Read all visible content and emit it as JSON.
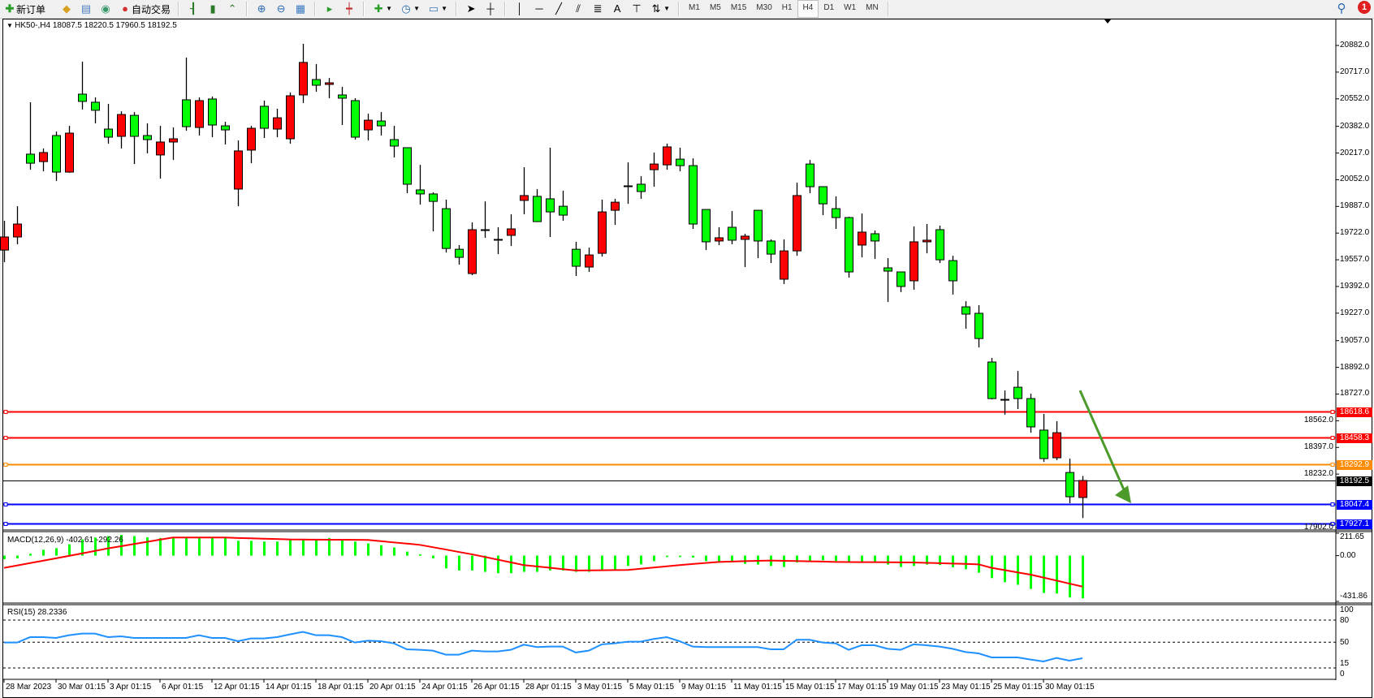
{
  "toolbar": {
    "new_order_label": "新订单",
    "auto_trading_label": "自动交易",
    "icons": [
      "new-order-icon",
      "gold-icon",
      "server-icon",
      "signal-icon",
      "auto-trading-icon",
      "bar-chart-icon",
      "candlestick-icon",
      "line-chart-icon",
      "zoom-in-icon",
      "zoom-out-icon",
      "tile-windows-icon",
      "autoscroll-icon",
      "chart-shift-icon",
      "indicators-icon",
      "periods-icon",
      "templates-icon",
      "cursor-icon",
      "crosshair-icon",
      "vertical-line-icon",
      "horizontal-line-icon",
      "trendline-icon",
      "equidistant-channel-icon",
      "fibonacci-icon",
      "text-icon",
      "text-label-icon",
      "arrows-icon"
    ],
    "text_tool_label": "A",
    "timeframes": [
      "M1",
      "M5",
      "M15",
      "M30",
      "H1",
      "H4",
      "D1",
      "W1",
      "MN"
    ],
    "active_timeframe": "H4",
    "notification_count": "1"
  },
  "chart": {
    "header": "HK50-,H4  18087.5 18220.5 17960.5 18192.5",
    "symbol": "HK50-",
    "timeframe": "H4",
    "colors": {
      "up": "#ff0000",
      "down": "#00ff00",
      "outline": "#000000",
      "arrow": "#4c9a2a"
    },
    "price_ticks": [
      "20882.0",
      "20717.0",
      "20552.0",
      "20382.0",
      "20217.0",
      "20052.0",
      "19887.0",
      "19722.0",
      "19557.0",
      "19392.0",
      "19227.0",
      "19057.0",
      "18892.0",
      "18727.0",
      "18562.0",
      "18397.0",
      "18232.0",
      "17902.0"
    ],
    "levels": [
      {
        "price": "18618.6",
        "color": "#ff0000"
      },
      {
        "price": "18458.3",
        "color": "#ff0000"
      },
      {
        "price": "18292.9",
        "color": "#ff8c00"
      },
      {
        "price": "18192.5",
        "color": "#000000"
      },
      {
        "price": "18047.4",
        "color": "#0000ff"
      },
      {
        "price": "17927.1",
        "color": "#0000ff"
      }
    ],
    "arrow": {
      "direction": "down-right",
      "from_price": 18749,
      "to_price": 18242
    },
    "time_labels": [
      "28 Mar 2023",
      "30 Mar 01:15",
      "3 Apr 01:15",
      "6 Apr 01:15",
      "12 Apr 01:15",
      "14 Apr 01:15",
      "18 Apr 01:15",
      "20 Apr 01:15",
      "24 Apr 01:15",
      "26 Apr 01:15",
      "28 Apr 01:15",
      "3 May 01:15",
      "5 May 01:15",
      "9 May 01:15",
      "11 May 01:15",
      "15 May 01:15",
      "17 May 01:15",
      "19 May 01:15",
      "23 May 01:15",
      "25 May 01:15",
      "30 May 01:15"
    ]
  },
  "chart_data": [
    {
      "type": "candlestick",
      "title": "HK50-,H4",
      "ylim": [
        17886,
        21048
      ],
      "ohlc": [
        [
          19617,
          19798,
          19542,
          19698
        ],
        [
          19698,
          19888,
          19653,
          19778
        ],
        [
          20210,
          20531,
          20114,
          20154
        ],
        [
          20164,
          20245,
          20104,
          20220
        ],
        [
          20325,
          20350,
          20044,
          20099
        ],
        [
          20099,
          20385,
          20095,
          20340
        ],
        [
          20581,
          20782,
          20486,
          20536
        ],
        [
          20531,
          20561,
          20400,
          20481
        ],
        [
          20365,
          20521,
          20275,
          20315
        ],
        [
          20320,
          20475,
          20245,
          20455
        ],
        [
          20450,
          20470,
          20149,
          20320
        ],
        [
          20325,
          20400,
          20215,
          20300
        ],
        [
          20205,
          20385,
          20059,
          20285
        ],
        [
          20285,
          20375,
          20174,
          20305
        ],
        [
          20546,
          20807,
          20355,
          20380
        ],
        [
          20375,
          20561,
          20325,
          20541
        ],
        [
          20551,
          20566,
          20315,
          20390
        ],
        [
          20385,
          20410,
          20270,
          20360
        ],
        [
          19994,
          20295,
          19888,
          20230
        ],
        [
          20235,
          20385,
          20154,
          20370
        ],
        [
          20506,
          20541,
          20310,
          20370
        ],
        [
          20365,
          20491,
          20315,
          20435
        ],
        [
          20305,
          20591,
          20275,
          20571
        ],
        [
          20576,
          20892,
          20526,
          20777
        ],
        [
          20671,
          20767,
          20596,
          20636
        ],
        [
          20641,
          20681,
          20556,
          20651
        ],
        [
          20576,
          20626,
          20390,
          20556
        ],
        [
          20541,
          20556,
          20300,
          20315
        ],
        [
          20360,
          20460,
          20295,
          20420
        ],
        [
          20415,
          20470,
          20325,
          20385
        ],
        [
          20300,
          20385,
          20190,
          20260
        ],
        [
          20250,
          20250,
          19969,
          20024
        ],
        [
          19989,
          20144,
          19898,
          19964
        ],
        [
          19964,
          19974,
          19733,
          19918
        ],
        [
          19873,
          19929,
          19602,
          19627
        ],
        [
          19622,
          19648,
          19527,
          19572
        ],
        [
          19472,
          19788,
          19462,
          19743
        ],
        [
          19743,
          19918,
          19693,
          19743
        ],
        [
          19683,
          19758,
          19592,
          19683
        ],
        [
          19708,
          19838,
          19642,
          19748
        ],
        [
          19924,
          20129,
          19838,
          19954
        ],
        [
          19949,
          19994,
          19790,
          19793
        ],
        [
          19934,
          20250,
          19698,
          19853
        ],
        [
          19888,
          19984,
          19798,
          19833
        ],
        [
          19622,
          19668,
          19457,
          19517
        ],
        [
          19512,
          19632,
          19482,
          19587
        ],
        [
          19597,
          19929,
          19577,
          19853
        ],
        [
          19863,
          19934,
          19773,
          19913
        ],
        [
          20014,
          20159,
          19903,
          20014
        ],
        [
          20024,
          20074,
          19934,
          19979
        ],
        [
          20114,
          20220,
          20009,
          20149
        ],
        [
          20144,
          20275,
          20114,
          20255
        ],
        [
          20179,
          20250,
          20104,
          20139
        ],
        [
          20139,
          20184,
          19748,
          19778
        ],
        [
          19868,
          19868,
          19617,
          19668
        ],
        [
          19673,
          19758,
          19648,
          19693
        ],
        [
          19758,
          19858,
          19653,
          19678
        ],
        [
          19683,
          19718,
          19512,
          19703
        ],
        [
          19863,
          19863,
          19567,
          19673
        ],
        [
          19673,
          19683,
          19537,
          19592
        ],
        [
          19437,
          19683,
          19407,
          19612
        ],
        [
          19612,
          20034,
          19582,
          19954
        ],
        [
          20149,
          20174,
          19969,
          20009
        ],
        [
          20009,
          20009,
          19833,
          19903
        ],
        [
          19873,
          19949,
          19748,
          19818
        ],
        [
          19818,
          19823,
          19447,
          19482
        ],
        [
          19648,
          19843,
          19572,
          19728
        ],
        [
          19718,
          19738,
          19562,
          19673
        ],
        [
          19507,
          19567,
          19296,
          19487
        ],
        [
          19482,
          19482,
          19357,
          19392
        ],
        [
          19427,
          19763,
          19372,
          19668
        ],
        [
          19668,
          19778,
          19597,
          19678
        ],
        [
          19743,
          19768,
          19537,
          19557
        ],
        [
          19552,
          19582,
          19342,
          19427
        ],
        [
          19266,
          19301,
          19131,
          19221
        ],
        [
          19226,
          19276,
          19015,
          19070
        ],
        [
          18925,
          18950,
          18694,
          18699
        ],
        [
          18694,
          18749,
          18599,
          18694
        ],
        [
          18769,
          18870,
          18634,
          18699
        ],
        [
          18699,
          18729,
          18488,
          18524
        ],
        [
          18504,
          18604,
          18308,
          18328
        ],
        [
          18333,
          18559,
          18318,
          18488
        ],
        [
          18242,
          18328,
          18052,
          18092
        ],
        [
          18087.5,
          18220.5,
          17960.5,
          18192.5
        ]
      ]
    },
    {
      "type": "bar",
      "title": "MACD(12,26,9) -402.61 -292.26",
      "ylim": [
        -431.86,
        211.65
      ],
      "tick_labels": [
        "211.65",
        "0.00",
        "-431.86"
      ],
      "series": [
        {
          "name": "MACD",
          "values": [
            -33,
            -25,
            18,
            56,
            71,
            107,
            153,
            171,
            184,
            196,
            184,
            173,
            166,
            166,
            166,
            166,
            166,
            166,
            140,
            140,
            133,
            133,
            153,
            153,
            153,
            166,
            153,
            133,
            115,
            99,
            77,
            38,
            13,
            -25,
            -120,
            -140,
            -140,
            -153,
            -166,
            -166,
            -153,
            -153,
            -140,
            -140,
            -153,
            -153,
            -140,
            -135,
            -97,
            -82,
            -51,
            -13,
            -13,
            -18,
            -51,
            -59,
            -64,
            -77,
            -84,
            -97,
            -107,
            -64,
            -51,
            -43,
            -51,
            -64,
            -64,
            -56,
            -84,
            -107,
            -97,
            -84,
            -89,
            -110,
            -128,
            -161,
            -212,
            -250,
            -275,
            -314,
            -352,
            -357,
            -395,
            -402.61
          ]
        },
        {
          "name": "Signal",
          "values": [
            -115,
            -93,
            -70,
            -48,
            -25,
            -2,
            21,
            45,
            69,
            89,
            110,
            130,
            151,
            171,
            171,
            171,
            171,
            171,
            167,
            164,
            160,
            157,
            153,
            152,
            151,
            150,
            150,
            149,
            148,
            137,
            125,
            114,
            102,
            80,
            58,
            35,
            13,
            -12,
            -38,
            -63,
            -89,
            -102,
            -114,
            -127,
            -140,
            -139,
            -138,
            -136,
            -135,
            -124,
            -112,
            -101,
            -89,
            -79,
            -69,
            -59,
            -56,
            -52,
            -49,
            -46,
            -49,
            -51,
            -54,
            -56,
            -59,
            -60,
            -61,
            -61,
            -62,
            -63,
            -64,
            -68,
            -71,
            -75,
            -78,
            -82,
            -115,
            -136,
            -158,
            -179,
            -207,
            -235,
            -264,
            -292.26
          ]
        }
      ]
    },
    {
      "type": "line",
      "title": "RSI(15) 28.2336",
      "ylim": [
        0,
        100
      ],
      "tick_labels": [
        "100",
        "80",
        "50",
        "15",
        "0"
      ],
      "levels": [
        80,
        50,
        15
      ],
      "values": [
        49.5,
        49.5,
        56.8,
        56.8,
        55.7,
        59.4,
        61.6,
        61.6,
        56.8,
        57.9,
        55.7,
        55.7,
        55.7,
        55.7,
        55.7,
        59.4,
        55.7,
        55.7,
        51.3,
        55,
        55,
        56.8,
        60.5,
        64,
        59.4,
        59.4,
        56.8,
        49.5,
        52,
        51.3,
        48.4,
        40.3,
        39.6,
        38.5,
        33,
        33,
        38.5,
        37.4,
        37.4,
        39.6,
        46.6,
        43.3,
        44,
        44,
        36,
        38.5,
        47,
        48.4,
        50.6,
        50.6,
        54.3,
        56.8,
        51.3,
        44,
        43.3,
        43.3,
        43.3,
        43.3,
        43.3,
        40.3,
        40.3,
        53.2,
        53.2,
        49.5,
        48.4,
        39.6,
        45.8,
        45.8,
        41,
        39.6,
        47,
        45.8,
        44,
        41,
        36.6,
        34.8,
        29.3,
        29.3,
        29.3,
        26.4,
        23.8,
        28.6,
        24.9,
        28.2336
      ]
    }
  ]
}
